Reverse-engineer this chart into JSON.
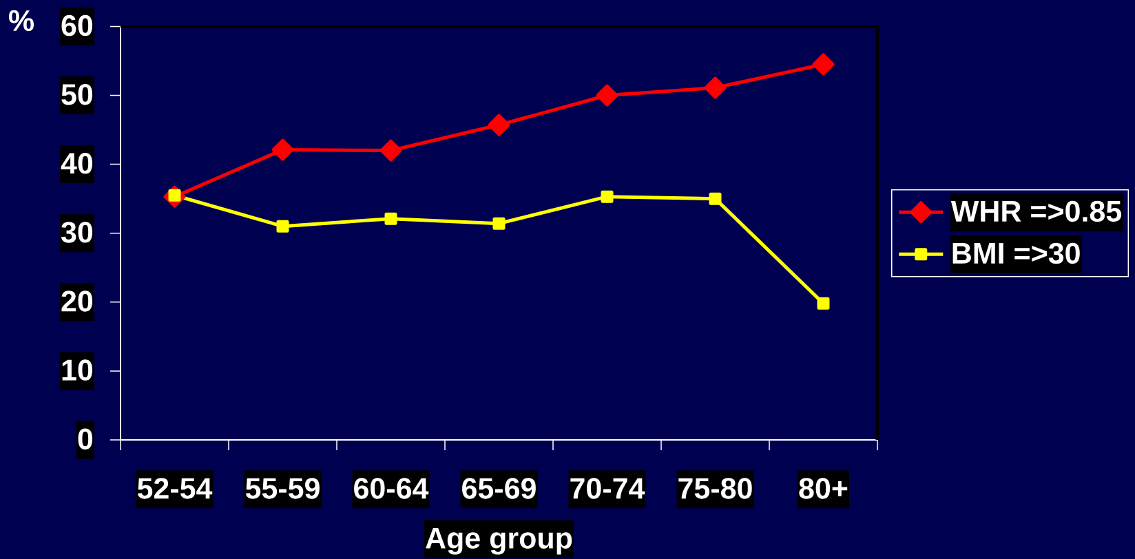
{
  "chart_data": {
    "type": "line",
    "xlabel": "Age group",
    "ylabel": "%",
    "categories": [
      "52-54",
      "55-59",
      "60-64",
      "65-69",
      "70-74",
      "75-80",
      "80+"
    ],
    "series": [
      {
        "name": "WHR =>0.85",
        "color": "#ff0000",
        "marker": "diamond",
        "values": [
          35.3,
          42.1,
          42.0,
          45.7,
          50.0,
          51.1,
          54.5
        ]
      },
      {
        "name": "BMI =>30",
        "color": "#ffff00",
        "marker": "square",
        "values": [
          35.5,
          31.0,
          32.1,
          31.4,
          35.3,
          35.0,
          19.8
        ]
      }
    ],
    "ylim": [
      0,
      60
    ],
    "yticks": [
      0,
      10,
      20,
      30,
      40,
      50,
      60
    ],
    "legend": "right",
    "line_style": "solid"
  }
}
